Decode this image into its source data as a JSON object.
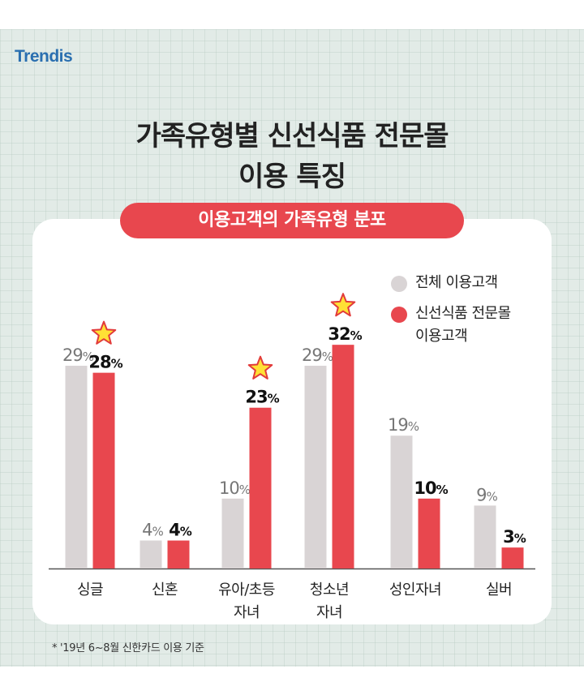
{
  "brand": {
    "logo_text": "Trendis"
  },
  "header": {
    "title_line1": "가족유형별 신선식품 전문몰",
    "title_line2": "이용 특징"
  },
  "chart_header": "이용고객의 가족유형 분포",
  "legend": [
    {
      "label": "전체 이용고객",
      "color": "#d9d4d5"
    },
    {
      "label_line1": "신선식품 전문몰",
      "label_line2": "이용고객",
      "color": "#e8474e"
    }
  ],
  "footnote": "* '19년 6~8월 신한카드 이용 기준",
  "chart_data": {
    "type": "bar",
    "categories": [
      "싱글",
      "신혼",
      "유아/초등\n자녀",
      "청소년\n자녀",
      "성인자녀",
      "실버"
    ],
    "series": [
      {
        "name": "전체 이용고객",
        "values": [
          29,
          4,
          10,
          29,
          19,
          9
        ],
        "color": "#d9d4d5"
      },
      {
        "name": "신선식품 전문몰 이용고객",
        "values": [
          28,
          4,
          23,
          32,
          10,
          3
        ],
        "color": "#e8474e"
      }
    ],
    "unit": "%",
    "highlighted_categories": [
      0,
      2,
      3
    ],
    "highlight_icon": "star-icon",
    "ylim": [
      0,
      35
    ],
    "title": "",
    "xlabel": "",
    "ylabel": "",
    "grid": false
  }
}
